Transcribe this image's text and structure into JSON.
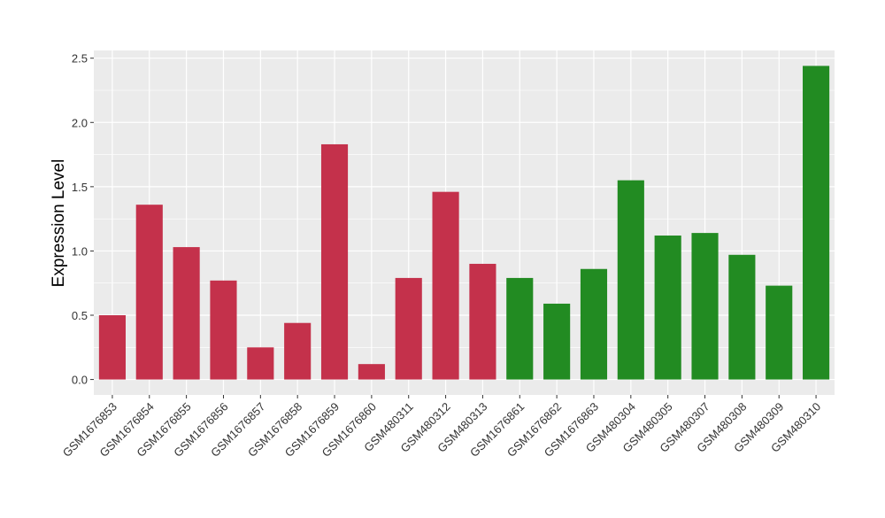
{
  "chart_data": {
    "type": "bar",
    "title": "",
    "xlabel": "",
    "ylabel": "Expression Level",
    "ylim": [
      -0.12,
      2.56
    ],
    "yticks": [
      0.0,
      0.5,
      1.0,
      1.5,
      2.0,
      2.5
    ],
    "ytick_labels": [
      "0.0",
      "0.5",
      "1.0",
      "1.5",
      "2.0",
      "2.5"
    ],
    "grid": true,
    "categories": [
      "GSM1676853",
      "GSM1676854",
      "GSM1676855",
      "GSM1676856",
      "GSM1676857",
      "GSM1676858",
      "GSM1676859",
      "GSM1676860",
      "GSM480311",
      "GSM480312",
      "GSM480313",
      "GSM1676861",
      "GSM1676862",
      "GSM1676863",
      "GSM480304",
      "GSM480305",
      "GSM480307",
      "GSM480308",
      "GSM480309",
      "GSM480310"
    ],
    "values": [
      0.5,
      1.36,
      1.03,
      0.77,
      0.25,
      0.44,
      1.83,
      0.12,
      0.79,
      1.46,
      0.9,
      0.79,
      0.59,
      0.86,
      1.55,
      1.12,
      1.14,
      0.97,
      0.73,
      2.44
    ],
    "groups": [
      "red",
      "red",
      "red",
      "red",
      "red",
      "red",
      "red",
      "red",
      "red",
      "red",
      "red",
      "green",
      "green",
      "green",
      "green",
      "green",
      "green",
      "green",
      "green",
      "green"
    ],
    "colors": {
      "red": "#C4314B",
      "green": "#228B22",
      "panel": "#EBEBEB",
      "grid": "#FFFFFF"
    }
  }
}
